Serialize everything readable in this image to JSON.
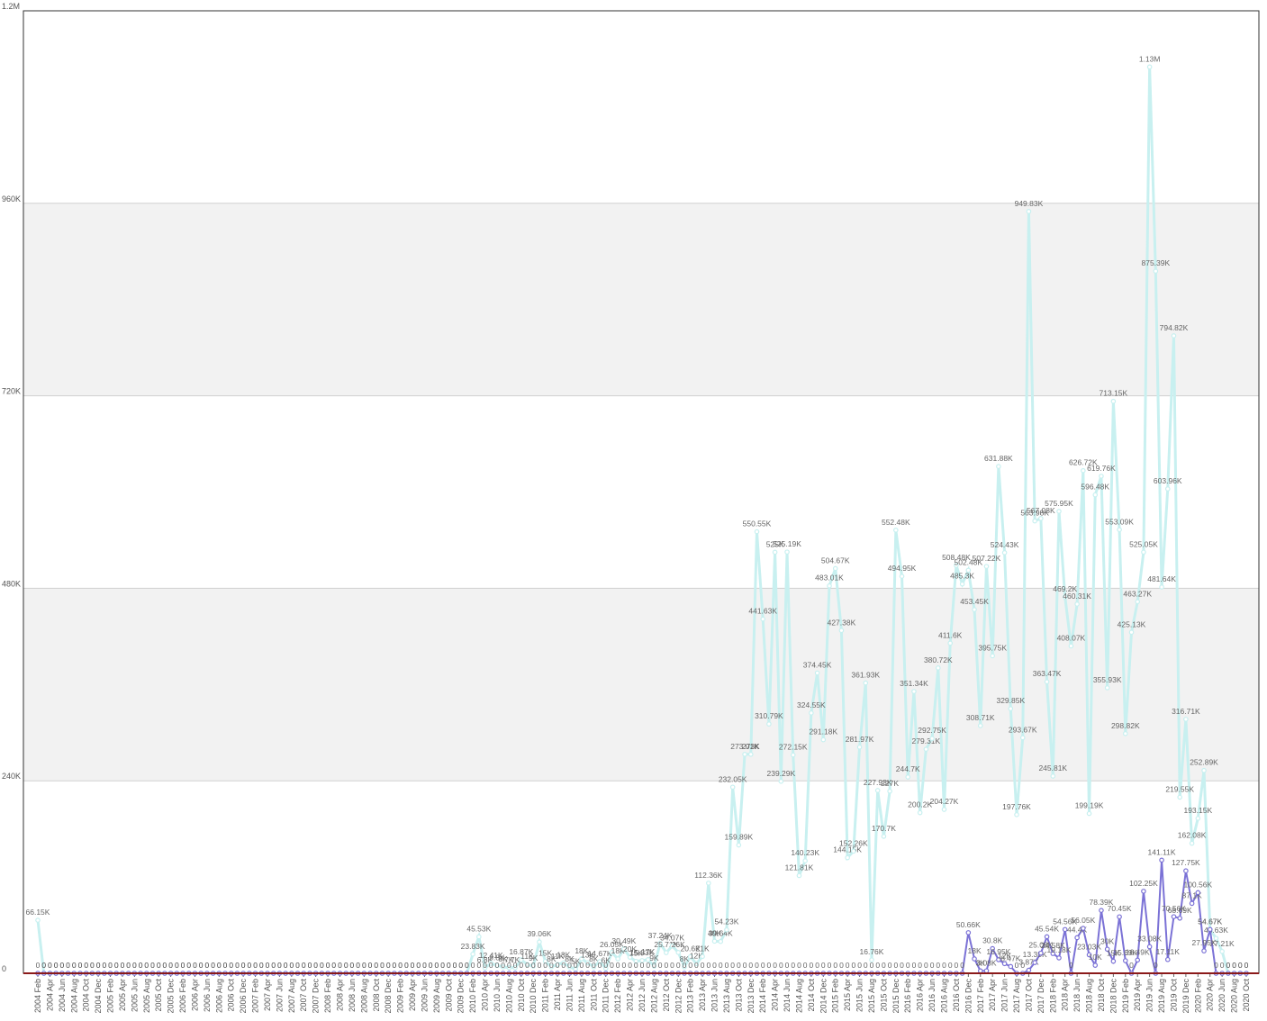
{
  "chart_data": {
    "type": "line",
    "categories": [
      "2004 Feb",
      null,
      "2004 Apr",
      null,
      "2004 Jun",
      null,
      "2004 Aug",
      null,
      "2004 Oct",
      null,
      "2004 Dec",
      null,
      "2005 Feb",
      null,
      "2005 Apr",
      null,
      "2005 Jun",
      null,
      "2005 Aug",
      null,
      "2005 Oct",
      null,
      "2005 Dec",
      null,
      "2006 Feb",
      null,
      "2006 Apr",
      null,
      "2006 Jun",
      null,
      "2006 Aug",
      null,
      "2006 Oct",
      null,
      "2006 Dec",
      null,
      "2007 Feb",
      null,
      "2007 Apr",
      null,
      "2007 Jun",
      null,
      "2007 Aug",
      null,
      "2007 Oct",
      null,
      "2007 Dec",
      null,
      "2008 Feb",
      null,
      "2008 Apr",
      null,
      "2008 Jun",
      null,
      "2008 Aug",
      null,
      "2008 Oct",
      null,
      "2008 Dec",
      null,
      "2009 Feb",
      null,
      "2009 Apr",
      null,
      "2009 Jun",
      null,
      "2009 Aug",
      null,
      "2009 Oct",
      null,
      "2009 Dec",
      null,
      "2010 Feb",
      null,
      "2010 Apr",
      null,
      "2010 Jun",
      null,
      "2010 Aug",
      null,
      "2010 Oct",
      null,
      "2010 Dec",
      null,
      "2011 Feb",
      null,
      "2011 Apr",
      null,
      "2011 Jun",
      null,
      "2011 Aug",
      null,
      "2011 Oct",
      null,
      "2011 Dec",
      null,
      "2012 Feb",
      null,
      "2012 Apr",
      null,
      "2012 Jun",
      null,
      "2012 Aug",
      null,
      "2012 Oct",
      null,
      "2012 Dec",
      null,
      "2013 Feb",
      null,
      "2013 Apr",
      null,
      "2013 Jun",
      null,
      "2013 Aug",
      null,
      "2013 Oct",
      null,
      "2013 Dec",
      null,
      "2014 Feb",
      null,
      "2014 Apr",
      null,
      "2014 Jun",
      null,
      "2014 Aug",
      null,
      "2014 Oct",
      null,
      "2014 Dec",
      null,
      "2015 Feb",
      null,
      "2015 Apr",
      null,
      "2015 Jun",
      null,
      "2015 Aug",
      null,
      "2015 Oct",
      null,
      "2015 Dec",
      null,
      "2016 Feb",
      null,
      "2016 Apr",
      null,
      "2016 Jun",
      null,
      "2016 Aug",
      null,
      "2016 Oct",
      null,
      "2016 Dec",
      null,
      "2017 Feb",
      null,
      "2017 Apr",
      null,
      "2017 Jun",
      null,
      "2017 Aug",
      null,
      "2017 Oct",
      null,
      "2017 Dec",
      null,
      "2018 Feb",
      null,
      "2018 Apr",
      null,
      "2018 Jun",
      null,
      "2018 Aug",
      null,
      "2018 Oct",
      null,
      "2018 Dec",
      null,
      "2019 Feb",
      null,
      "2019 Apr",
      null,
      "2019 Jun",
      null,
      "2019 Aug",
      null,
      "2019 Oct",
      null,
      "2019 Dec",
      null,
      "2020 Feb",
      null,
      "2020 Apr",
      null,
      "2020 Jun",
      null,
      "2020 Aug",
      null,
      "2020 Oct"
    ],
    "series": [
      {
        "color": "#c8f0f0",
        "values": [
          66150,
          0,
          0,
          0,
          0,
          0,
          0,
          0,
          0,
          0,
          0,
          0,
          0,
          0,
          0,
          0,
          0,
          0,
          0,
          0,
          0,
          0,
          0,
          0,
          0,
          0,
          0,
          0,
          0,
          0,
          0,
          0,
          0,
          0,
          0,
          0,
          0,
          0,
          0,
          0,
          0,
          0,
          0,
          0,
          0,
          0,
          0,
          0,
          0,
          0,
          0,
          0,
          0,
          0,
          0,
          0,
          0,
          0,
          0,
          0,
          0,
          0,
          0,
          0,
          0,
          0,
          0,
          0,
          0,
          0,
          0,
          0,
          23830,
          45530,
          6800,
          12410,
          9800,
          8000,
          7000,
          7000,
          16870,
          11000,
          9000,
          39060,
          15000,
          8000,
          11000,
          13000,
          8000,
          5000,
          18000,
          13000,
          8000,
          14670,
          6000,
          26050,
          18000,
          30490,
          20000,
          15000,
          15830,
          17000,
          9000,
          37240,
          25710,
          34070,
          26000,
          8000,
          20600,
          12000,
          21000,
          112360,
          40000,
          39640,
          54230,
          232050,
          159890,
          273010,
          273000,
          550550,
          441630,
          310790,
          525000,
          239290,
          525190,
          272150,
          121810,
          140230,
          324550,
          374450,
          291180,
          483010,
          504670,
          427380,
          144150,
          152260,
          281970,
          361930,
          16760,
          227930,
          170700,
          227000,
          552480,
          494950,
          244700,
          351340,
          200200,
          279310,
          292750,
          380720,
          204270,
          411600,
          508480,
          485300,
          502480,
          453450,
          308710,
          507220,
          395750,
          631880,
          524430,
          329850,
          197760,
          293670,
          949830,
          563980,
          567080,
          363470,
          245810,
          575950,
          469200,
          408070,
          460310,
          626720,
          199190,
          596480,
          619760,
          355930,
          713150,
          553090,
          298820,
          425130,
          463270,
          525050,
          1130000,
          875390,
          481640,
          603960,
          794820,
          219550,
          316710,
          162080,
          193150,
          252890,
          54670,
          43630,
          27210,
          0,
          0,
          0,
          0
        ],
        "value_labels": [
          "66.15K",
          "0",
          "0",
          "0",
          "0",
          "0",
          "0",
          "0",
          "0",
          "0",
          "0",
          "0",
          "0",
          "0",
          "0",
          "0",
          "0",
          "0",
          "0",
          "0",
          "0",
          "0",
          "0",
          "0",
          "0",
          "0",
          "0",
          "0",
          "0",
          "0",
          "0",
          "0",
          "0",
          "0",
          "0",
          "0",
          "0",
          "0",
          "0",
          "0",
          "0",
          "0",
          "0",
          "0",
          "0",
          "0",
          "0",
          "0",
          "0",
          "0",
          "0",
          "0",
          "0",
          "0",
          "0",
          "0",
          "0",
          "0",
          "0",
          "0",
          "0",
          "0",
          "0",
          "0",
          "0",
          "0",
          "0",
          "0",
          "0",
          "0",
          "0",
          "0",
          "23.83K",
          "45.53K",
          "6.8K",
          "12.41K",
          "9.8K",
          "8K",
          "7K",
          "7K",
          "16.87K",
          "11K",
          "9K",
          "39.06K",
          "15K",
          "8K",
          "11K",
          "13K",
          "8K",
          "5K",
          "18K",
          "13K",
          "8K",
          "14.67K",
          "6K",
          "26.05K",
          "18K",
          "30.49K",
          "20K",
          "15K",
          "15.83K",
          "17K",
          "9K",
          "37.24K",
          "25.71K",
          "34.07K",
          "26K",
          "8K",
          "20.6K",
          "12K",
          "21K",
          "112.36K",
          "40K",
          "39.64K",
          "54.23K",
          "232.05K",
          "159.89K",
          "273.01K",
          "273K",
          "550.55K",
          "441.63K",
          "310.79K",
          "525K",
          "239.29K",
          "525.19K",
          "272.15K",
          "121.81K",
          "140.23K",
          "324.55K",
          "374.45K",
          "291.18K",
          "483.01K",
          "504.67K",
          "427.38K",
          "144.15K",
          "152.26K",
          "281.97K",
          "361.93K",
          "16.76K",
          "227.93K",
          "170.7K",
          "227K",
          "552.48K",
          "494.95K",
          "244.7K",
          "351.34K",
          "200.2K",
          "279.31K",
          "292.75K",
          "380.72K",
          "204.27K",
          "411.6K",
          "508.48K",
          "485.3K",
          "502.48K",
          "453.45K",
          "308.71K",
          "507.22K",
          "395.75K",
          "631.88K",
          "524.43K",
          "329.85K",
          "197.76K",
          "293.67K",
          "949.83K",
          "563.98K",
          "567.08K",
          "363.47K",
          "245.81K",
          "575.95K",
          "469.2K",
          "408.07K",
          "460.31K",
          "626.72K",
          "199.19K",
          "596.48K",
          "619.76K",
          "355.93K",
          "713.15K",
          "553.09K",
          "298.82K",
          "425.13K",
          "463.27K",
          "525.05K",
          "1.13M",
          "875.39K",
          "481.64K",
          "603.96K",
          "794.82K",
          "219.55K",
          "316.71K",
          "162.08K",
          "193.15K",
          "252.89K",
          "54.67K",
          "43.63K",
          "27.21K",
          "0",
          "0",
          "0",
          "0"
        ]
      },
      {
        "color": "#7b72d6",
        "values": [
          0,
          0,
          0,
          0,
          0,
          0,
          0,
          0,
          0,
          0,
          0,
          0,
          0,
          0,
          0,
          0,
          0,
          0,
          0,
          0,
          0,
          0,
          0,
          0,
          0,
          0,
          0,
          0,
          0,
          0,
          0,
          0,
          0,
          0,
          0,
          0,
          0,
          0,
          0,
          0,
          0,
          0,
          0,
          0,
          0,
          0,
          0,
          0,
          0,
          0,
          0,
          0,
          0,
          0,
          0,
          0,
          0,
          0,
          0,
          0,
          0,
          0,
          0,
          0,
          0,
          0,
          0,
          0,
          0,
          0,
          0,
          0,
          0,
          0,
          0,
          0,
          0,
          0,
          0,
          0,
          0,
          0,
          0,
          0,
          0,
          0,
          0,
          0,
          0,
          0,
          0,
          0,
          0,
          0,
          0,
          0,
          0,
          0,
          0,
          0,
          0,
          0,
          0,
          0,
          0,
          0,
          0,
          0,
          0,
          0,
          0,
          0,
          0,
          0,
          0,
          0,
          0,
          0,
          0,
          0,
          0,
          0,
          0,
          0,
          0,
          0,
          0,
          0,
          0,
          0,
          0,
          0,
          0,
          0,
          0,
          0,
          0,
          0,
          0,
          0,
          0,
          0,
          0,
          0,
          0,
          0,
          0,
          0,
          0,
          0,
          0,
          0,
          0,
          0,
          50660,
          18000,
          3000,
          3080,
          30800,
          16950,
          12000,
          8470,
          0,
          0,
          3870,
          13350,
          25080,
          45540,
          24580,
          19180,
          54560,
          0,
          44400,
          56050,
          23030,
          10000,
          78390,
          30000,
          15000,
          70450,
          15690,
          0,
          16490,
          102250,
          33080,
          0,
          141110,
          17110,
          70560,
          68690,
          127750,
          87100,
          100560,
          27950,
          54670,
          0,
          0,
          0,
          0,
          0,
          0
        ],
        "value_labels": [
          "0",
          "0",
          "0",
          "0",
          "0",
          "0",
          "0",
          "0",
          "0",
          "0",
          "0",
          "0",
          "0",
          "0",
          "0",
          "0",
          "0",
          "0",
          "0",
          "0",
          "0",
          "0",
          "0",
          "0",
          "0",
          "0",
          "0",
          "0",
          "0",
          "0",
          "0",
          "0",
          "0",
          "0",
          "0",
          "0",
          "0",
          "0",
          "0",
          "0",
          "0",
          "0",
          "0",
          "0",
          "0",
          "0",
          "0",
          "0",
          "0",
          "0",
          "0",
          "0",
          "0",
          "0",
          "0",
          "0",
          "0",
          "0",
          "0",
          "0",
          "0",
          "0",
          "0",
          "0",
          "0",
          "0",
          "0",
          "0",
          "0",
          "0",
          "0",
          "0",
          "0",
          "0",
          "0",
          "0",
          "0",
          "0",
          "0",
          "0",
          "0",
          "0",
          "0",
          "0",
          "0",
          "0",
          "0",
          "0",
          "0",
          "0",
          "0",
          "0",
          "0",
          "0",
          "0",
          "0",
          "0",
          "0",
          "0",
          "0",
          "0",
          "0",
          "0",
          "0",
          "0",
          "0",
          "0",
          "0",
          "0",
          "0",
          "0",
          "0",
          "0",
          "0",
          "0",
          "0",
          "0",
          "0",
          "0",
          "0",
          "0",
          "0",
          "0",
          "0",
          "0",
          "0",
          "0",
          "0",
          "0",
          "0",
          "0",
          "0",
          "0",
          "0",
          "0",
          "0",
          "0",
          "0",
          "0",
          "0",
          "0",
          "0",
          "0",
          "0",
          "0",
          "0",
          "0",
          "0",
          "0",
          "0",
          "0",
          "0",
          "0",
          "0",
          "50.66K",
          "18K",
          "3K",
          "3.08K",
          "30.8K",
          "16.95K",
          "12K",
          "8.47K",
          "0",
          "0",
          "3.87K",
          "13.35K",
          "25.08K",
          "45.54K",
          "24.58K",
          "19.18K",
          "54.56K",
          "0",
          "44.4K",
          "56.05K",
          "23.03K",
          "10K",
          "78.39K",
          "30K",
          "15K",
          "70.45K",
          "15.69K",
          "0",
          "16.49K",
          "102.25K",
          "33.08K",
          "0",
          "141.11K",
          "17.11K",
          "70.56K",
          "68.69K",
          "127.75K",
          "87.1K",
          "100.56K",
          "27.95K",
          "54.67K",
          "0",
          "0",
          "0",
          "0",
          "0",
          "0"
        ]
      }
    ],
    "ylim": [
      0,
      1200000
    ],
    "yticks": [
      0,
      {
        "value": 240000,
        "label": "240K"
      },
      {
        "value": 480000,
        "label": "480K"
      },
      {
        "value": 720000,
        "label": "720K"
      },
      {
        "value": 960000,
        "label": "960K"
      },
      {
        "value": 1200000,
        "label": "1.2M"
      }
    ],
    "grid": true,
    "band_color": "#f2f2f2",
    "axis_color": "#8b1a1a"
  }
}
